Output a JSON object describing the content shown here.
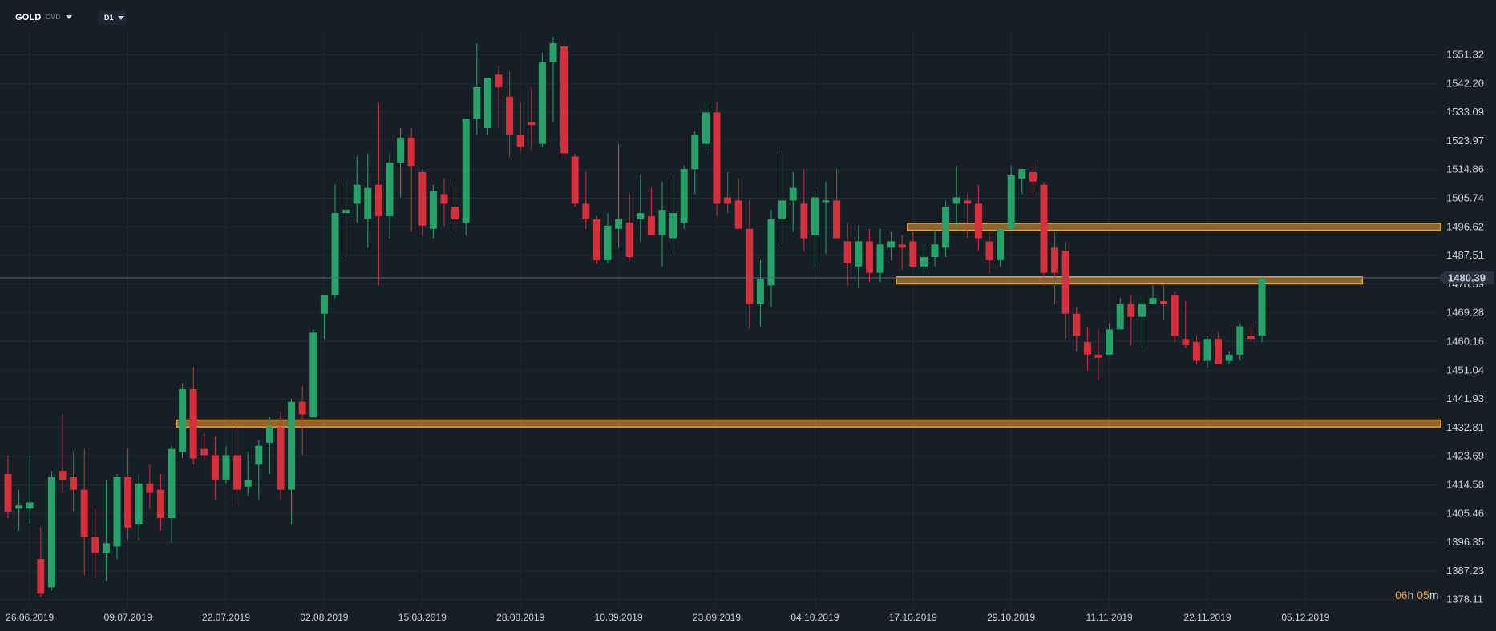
{
  "toolbar": {
    "symbol": "GOLD",
    "instrument_type": "CMD",
    "timeframe": "D1"
  },
  "current_price_label": "1480.39",
  "countdown": {
    "hours": "06",
    "h": "h",
    "minutes": "05",
    "m": "m"
  },
  "colors": {
    "background": "#161e26",
    "grid": "#1f2a33",
    "bullish": "#26a269",
    "bearish": "#d6303c",
    "zone": "#f0a030",
    "text": "#c9d1d9"
  },
  "chart_data": {
    "type": "candlestick",
    "ylim": [
      1376,
      1557
    ],
    "y_ticks": [
      "1551.32",
      "1542.20",
      "1533.09",
      "1523.97",
      "1514.86",
      "1505.74",
      "1496.62",
      "1487.51",
      "1478.39",
      "1469.28",
      "1460.16",
      "1451.04",
      "1441.93",
      "1432.81",
      "1423.69",
      "1414.58",
      "1405.46",
      "1396.35",
      "1387.23",
      "1378.11"
    ],
    "x_ticks": [
      {
        "label": "26.06.2019",
        "index": 2
      },
      {
        "label": "09.07.2019",
        "index": 11
      },
      {
        "label": "22.07.2019",
        "index": 20
      },
      {
        "label": "02.08.2019",
        "index": 29
      },
      {
        "label": "15.08.2019",
        "index": 38
      },
      {
        "label": "28.08.2019",
        "index": 47
      },
      {
        "label": "10.09.2019",
        "index": 56
      },
      {
        "label": "23.09.2019",
        "index": 65
      },
      {
        "label": "04.10.2019",
        "index": 74
      },
      {
        "label": "17.10.2019",
        "index": 83
      },
      {
        "label": "29.10.2019",
        "index": 92
      },
      {
        "label": "11.11.2019",
        "index": 101
      },
      {
        "label": "22.11.2019",
        "index": 110
      },
      {
        "label": "05.12.2019",
        "index": 119
      }
    ],
    "current_price": 1480.39,
    "candles": [
      {
        "o": 1418,
        "h": 1424,
        "l": 1404,
        "c": 1406
      },
      {
        "o": 1407,
        "h": 1413,
        "l": 1400,
        "c": 1408
      },
      {
        "o": 1407,
        "h": 1424,
        "l": 1402,
        "c": 1409
      },
      {
        "o": 1391,
        "h": 1401,
        "l": 1379,
        "c": 1380
      },
      {
        "o": 1382,
        "h": 1419,
        "l": 1381,
        "c": 1417
      },
      {
        "o": 1419,
        "h": 1437,
        "l": 1412,
        "c": 1416
      },
      {
        "o": 1417,
        "h": 1425,
        "l": 1406,
        "c": 1413
      },
      {
        "o": 1413,
        "h": 1426,
        "l": 1386,
        "c": 1398
      },
      {
        "o": 1398,
        "h": 1407,
        "l": 1385,
        "c": 1393
      },
      {
        "o": 1393,
        "h": 1416,
        "l": 1384,
        "c": 1396
      },
      {
        "o": 1395,
        "h": 1418,
        "l": 1391,
        "c": 1417
      },
      {
        "o": 1417,
        "h": 1426,
        "l": 1397,
        "c": 1401
      },
      {
        "o": 1402,
        "h": 1418,
        "l": 1397,
        "c": 1415
      },
      {
        "o": 1415,
        "h": 1421,
        "l": 1407,
        "c": 1412
      },
      {
        "o": 1413,
        "h": 1418,
        "l": 1400,
        "c": 1404
      },
      {
        "o": 1404,
        "h": 1427,
        "l": 1396,
        "c": 1426
      },
      {
        "o": 1425,
        "h": 1447,
        "l": 1423,
        "c": 1445
      },
      {
        "o": 1445,
        "h": 1452,
        "l": 1421,
        "c": 1423
      },
      {
        "o": 1426,
        "h": 1431,
        "l": 1422,
        "c": 1424
      },
      {
        "o": 1424,
        "h": 1430,
        "l": 1410,
        "c": 1416
      },
      {
        "o": 1416,
        "h": 1427,
        "l": 1415,
        "c": 1424
      },
      {
        "o": 1424,
        "h": 1433,
        "l": 1408,
        "c": 1413
      },
      {
        "o": 1414,
        "h": 1425,
        "l": 1411,
        "c": 1416
      },
      {
        "o": 1421,
        "h": 1429,
        "l": 1410,
        "c": 1427
      },
      {
        "o": 1428,
        "h": 1436,
        "l": 1418,
        "c": 1433
      },
      {
        "o": 1433,
        "h": 1438,
        "l": 1410,
        "c": 1413
      },
      {
        "o": 1413,
        "h": 1442,
        "l": 1402,
        "c": 1441
      },
      {
        "o": 1441,
        "h": 1446,
        "l": 1424,
        "c": 1437
      },
      {
        "o": 1436,
        "h": 1464,
        "l": 1436,
        "c": 1463
      },
      {
        "o": 1469,
        "h": 1475,
        "l": 1461,
        "c": 1475
      },
      {
        "o": 1475,
        "h": 1510,
        "l": 1474,
        "c": 1501
      },
      {
        "o": 1501,
        "h": 1511,
        "l": 1487,
        "c": 1502
      },
      {
        "o": 1504,
        "h": 1519,
        "l": 1498,
        "c": 1510
      },
      {
        "o": 1499,
        "h": 1520,
        "l": 1490,
        "c": 1509
      },
      {
        "o": 1510,
        "h": 1536,
        "l": 1478,
        "c": 1500
      },
      {
        "o": 1500,
        "h": 1520,
        "l": 1493,
        "c": 1517
      },
      {
        "o": 1517,
        "h": 1528,
        "l": 1506,
        "c": 1525
      },
      {
        "o": 1525,
        "h": 1528,
        "l": 1495,
        "c": 1516
      },
      {
        "o": 1514,
        "h": 1515,
        "l": 1494,
        "c": 1497
      },
      {
        "o": 1496,
        "h": 1510,
        "l": 1493,
        "c": 1508
      },
      {
        "o": 1507,
        "h": 1512,
        "l": 1497,
        "c": 1504
      },
      {
        "o": 1503,
        "h": 1511,
        "l": 1495,
        "c": 1499
      },
      {
        "o": 1498,
        "h": 1530,
        "l": 1494,
        "c": 1531
      },
      {
        "o": 1531,
        "h": 1555,
        "l": 1526,
        "c": 1541
      },
      {
        "o": 1528,
        "h": 1543,
        "l": 1526,
        "c": 1544
      },
      {
        "o": 1545,
        "h": 1548,
        "l": 1528,
        "c": 1541
      },
      {
        "o": 1538,
        "h": 1546,
        "l": 1519,
        "c": 1526
      },
      {
        "o": 1526,
        "h": 1536,
        "l": 1521,
        "c": 1522
      },
      {
        "o": 1530,
        "h": 1541,
        "l": 1521,
        "c": 1529
      },
      {
        "o": 1523,
        "h": 1552,
        "l": 1522,
        "c": 1549
      },
      {
        "o": 1549,
        "h": 1557,
        "l": 1530,
        "c": 1555
      },
      {
        "o": 1554,
        "h": 1556,
        "l": 1518,
        "c": 1520
      },
      {
        "o": 1519,
        "h": 1520,
        "l": 1503,
        "c": 1504
      },
      {
        "o": 1504,
        "h": 1514,
        "l": 1496,
        "c": 1499
      },
      {
        "o": 1499,
        "h": 1500,
        "l": 1485,
        "c": 1486
      },
      {
        "o": 1486,
        "h": 1501,
        "l": 1485,
        "c": 1497
      },
      {
        "o": 1496,
        "h": 1523,
        "l": 1490,
        "c": 1499
      },
      {
        "o": 1498,
        "h": 1507,
        "l": 1486,
        "c": 1487
      },
      {
        "o": 1499,
        "h": 1513,
        "l": 1492,
        "c": 1501
      },
      {
        "o": 1500,
        "h": 1509,
        "l": 1494,
        "c": 1494
      },
      {
        "o": 1494,
        "h": 1511,
        "l": 1484,
        "c": 1502
      },
      {
        "o": 1493,
        "h": 1513,
        "l": 1488,
        "c": 1501
      },
      {
        "o": 1498,
        "h": 1516,
        "l": 1496,
        "c": 1515
      },
      {
        "o": 1515,
        "h": 1527,
        "l": 1507,
        "c": 1526
      },
      {
        "o": 1523,
        "h": 1536,
        "l": 1521,
        "c": 1533
      },
      {
        "o": 1533,
        "h": 1536,
        "l": 1500,
        "c": 1504
      },
      {
        "o": 1506,
        "h": 1514,
        "l": 1501,
        "c": 1504
      },
      {
        "o": 1505,
        "h": 1512,
        "l": 1497,
        "c": 1496
      },
      {
        "o": 1496,
        "h": 1505,
        "l": 1464,
        "c": 1472
      },
      {
        "o": 1472,
        "h": 1486,
        "l": 1465,
        "c": 1480
      },
      {
        "o": 1478,
        "h": 1502,
        "l": 1471,
        "c": 1499
      },
      {
        "o": 1499,
        "h": 1521,
        "l": 1491,
        "c": 1505
      },
      {
        "o": 1505,
        "h": 1514,
        "l": 1495,
        "c": 1509
      },
      {
        "o": 1504,
        "h": 1515,
        "l": 1489,
        "c": 1493
      },
      {
        "o": 1494,
        "h": 1508,
        "l": 1484,
        "c": 1506
      },
      {
        "o": 1505,
        "h": 1511,
        "l": 1488,
        "c": 1505
      },
      {
        "o": 1505,
        "h": 1515,
        "l": 1494,
        "c": 1493
      },
      {
        "o": 1492,
        "h": 1498,
        "l": 1478,
        "c": 1485
      },
      {
        "o": 1484,
        "h": 1497,
        "l": 1477,
        "c": 1492
      },
      {
        "o": 1492,
        "h": 1496,
        "l": 1479,
        "c": 1482
      },
      {
        "o": 1482,
        "h": 1496,
        "l": 1479,
        "c": 1491
      },
      {
        "o": 1490,
        "h": 1495,
        "l": 1486,
        "c": 1492
      },
      {
        "o": 1491,
        "h": 1494,
        "l": 1483,
        "c": 1490
      },
      {
        "o": 1492,
        "h": 1495,
        "l": 1484,
        "c": 1484
      },
      {
        "o": 1484,
        "h": 1491,
        "l": 1482,
        "c": 1487
      },
      {
        "o": 1487,
        "h": 1496,
        "l": 1484,
        "c": 1491
      },
      {
        "o": 1490,
        "h": 1505,
        "l": 1487,
        "c": 1503
      },
      {
        "o": 1504,
        "h": 1516,
        "l": 1496,
        "c": 1506
      },
      {
        "o": 1505,
        "h": 1507,
        "l": 1493,
        "c": 1504
      },
      {
        "o": 1504,
        "h": 1510,
        "l": 1489,
        "c": 1493
      },
      {
        "o": 1492,
        "h": 1495,
        "l": 1482,
        "c": 1486
      },
      {
        "o": 1486,
        "h": 1496,
        "l": 1484,
        "c": 1496
      },
      {
        "o": 1496,
        "h": 1516,
        "l": 1496,
        "c": 1513
      },
      {
        "o": 1512,
        "h": 1515,
        "l": 1507,
        "c": 1515
      },
      {
        "o": 1514,
        "h": 1517,
        "l": 1507,
        "c": 1511
      },
      {
        "o": 1510,
        "h": 1511,
        "l": 1478,
        "c": 1482
      },
      {
        "o": 1490,
        "h": 1495,
        "l": 1472,
        "c": 1482
      },
      {
        "o": 1489,
        "h": 1492,
        "l": 1461,
        "c": 1469
      },
      {
        "o": 1469,
        "h": 1471,
        "l": 1457,
        "c": 1462
      },
      {
        "o": 1460,
        "h": 1465,
        "l": 1451,
        "c": 1456
      },
      {
        "o": 1456,
        "h": 1464,
        "l": 1448,
        "c": 1455
      },
      {
        "o": 1456,
        "h": 1466,
        "l": 1456,
        "c": 1464
      },
      {
        "o": 1464,
        "h": 1474,
        "l": 1464,
        "c": 1472
      },
      {
        "o": 1472,
        "h": 1475,
        "l": 1459,
        "c": 1468
      },
      {
        "o": 1468,
        "h": 1475,
        "l": 1458,
        "c": 1472
      },
      {
        "o": 1472,
        "h": 1478,
        "l": 1472,
        "c": 1474
      },
      {
        "o": 1473,
        "h": 1478,
        "l": 1467,
        "c": 1472
      },
      {
        "o": 1475,
        "h": 1476,
        "l": 1460,
        "c": 1462
      },
      {
        "o": 1461,
        "h": 1473,
        "l": 1458,
        "c": 1459
      },
      {
        "o": 1460,
        "h": 1462,
        "l": 1453,
        "c": 1454
      },
      {
        "o": 1454,
        "h": 1462,
        "l": 1452,
        "c": 1461
      },
      {
        "o": 1461,
        "h": 1463,
        "l": 1453,
        "c": 1453
      },
      {
        "o": 1454,
        "h": 1457,
        "l": 1453,
        "c": 1456
      },
      {
        "o": 1456,
        "h": 1466,
        "l": 1454,
        "c": 1465
      },
      {
        "o": 1462,
        "h": 1466,
        "l": 1460,
        "c": 1461
      },
      {
        "o": 1462,
        "h": 1481,
        "l": 1460,
        "c": 1480
      }
    ],
    "zones": [
      {
        "low": 1495.5,
        "high": 1497.7,
        "from_index": 83,
        "to_index": "end"
      },
      {
        "low": 1478.5,
        "high": 1480.7,
        "from_index": 82,
        "to_index": 124
      },
      {
        "low": 1433.0,
        "high": 1435.2,
        "from_index": 16,
        "to_index": "end"
      }
    ]
  }
}
